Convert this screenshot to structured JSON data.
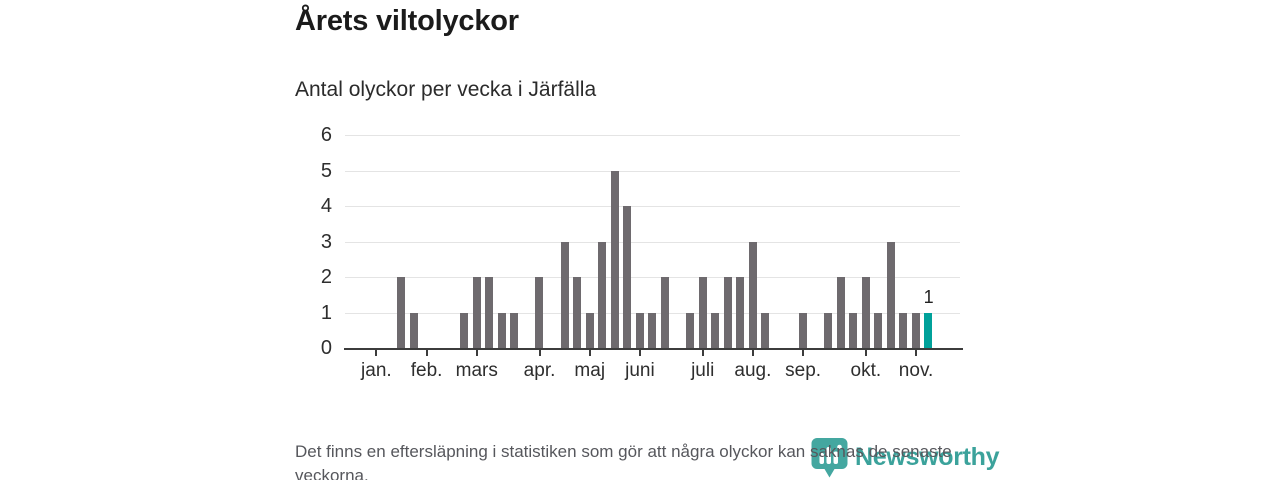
{
  "header": {
    "title": "Årets viltolyckor",
    "subtitle": "Antal olyckor per vecka i Järfälla"
  },
  "chart_data": {
    "type": "bar",
    "x_unit": "vecka (week), jan.–nov.",
    "n_slots": 49,
    "values": [
      0,
      0,
      0,
      0,
      2,
      1,
      0,
      0,
      0,
      1,
      2,
      2,
      1,
      1,
      0,
      2,
      0,
      3,
      2,
      1,
      3,
      5,
      4,
      1,
      1,
      2,
      0,
      1,
      2,
      1,
      2,
      2,
      3,
      1,
      0,
      0,
      1,
      0,
      1,
      2,
      1,
      2,
      1,
      3,
      1,
      1,
      1,
      0,
      0
    ],
    "highlight_slot": 47,
    "highlight_label": "1",
    "months": [
      {
        "label": "jan.",
        "slot": 3
      },
      {
        "label": "feb.",
        "slot": 7
      },
      {
        "label": "mars",
        "slot": 11
      },
      {
        "label": "apr.",
        "slot": 16
      },
      {
        "label": "maj",
        "slot": 20
      },
      {
        "label": "juni",
        "slot": 24
      },
      {
        "label": "juli",
        "slot": 29
      },
      {
        "label": "aug.",
        "slot": 33
      },
      {
        "label": "sep.",
        "slot": 37
      },
      {
        "label": "okt.",
        "slot": 42
      },
      {
        "label": "nov.",
        "slot": 46
      }
    ],
    "title": "Årets viltolyckor",
    "subtitle": "Antal olyckor per vecka i Järfälla",
    "xlabel": "",
    "ylabel": "",
    "ylim": [
      0,
      6
    ],
    "yticks": [
      0,
      1,
      2,
      3,
      4,
      5,
      6
    ],
    "grid": true,
    "legend": "none",
    "colors": {
      "bar": "#6e6a6e",
      "highlight": "#00a19a",
      "grid": "#e4e4e4",
      "axis": "#3c3c3c"
    }
  },
  "footer": {
    "note": "Det finns en eftersläpning i statistiken som gör att några olyckor kan saknas de senaste veckorna."
  },
  "logo": {
    "text": "Newsworthy",
    "color": "#3ba29b"
  }
}
